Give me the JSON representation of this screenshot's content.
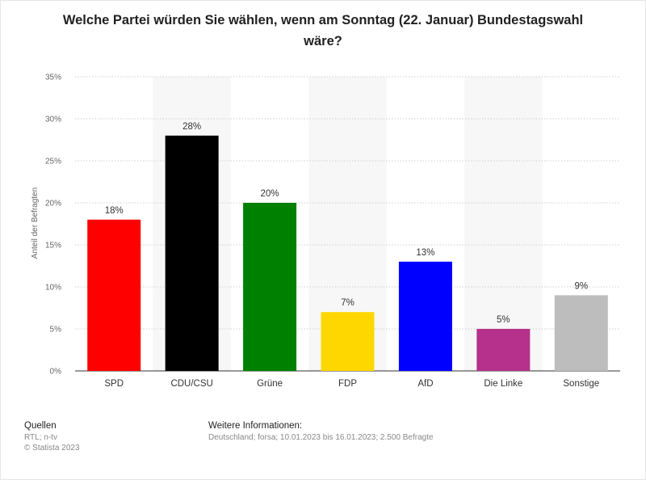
{
  "chart_data": {
    "type": "bar",
    "title": "Welche Partei würden Sie wählen, wenn am Sonntag (22. Januar) Bundestagswahl wäre?",
    "ylabel": "Anteil der Befragten",
    "xlabel": "",
    "ylim": [
      0,
      35
    ],
    "yticks": [
      0,
      5,
      10,
      15,
      20,
      25,
      30,
      35
    ],
    "ytick_labels": [
      "0%",
      "5%",
      "10%",
      "15%",
      "20%",
      "25%",
      "30%",
      "35%"
    ],
    "categories": [
      "SPD",
      "CDU/CSU",
      "Grüne",
      "FDP",
      "AfD",
      "Die Linke",
      "Sonstige"
    ],
    "values": [
      18,
      28,
      20,
      7,
      13,
      5,
      9
    ],
    "value_labels": [
      "18%",
      "28%",
      "20%",
      "7%",
      "13%",
      "5%",
      "9%"
    ],
    "colors": [
      "#ff0000",
      "#000000",
      "#008000",
      "#ffd700",
      "#0000ff",
      "#b5318b",
      "#bdbdbd"
    ],
    "grid": true
  },
  "footer": {
    "sources_title": "Quellen",
    "sources_line": "RTL; n-tv",
    "copyright": "© Statista 2023",
    "info_title": "Weitere Informationen:",
    "info_line": "Deutschland; forsa; 10.01.2023 bis 16.01.2023; 2.500 Befragte"
  }
}
